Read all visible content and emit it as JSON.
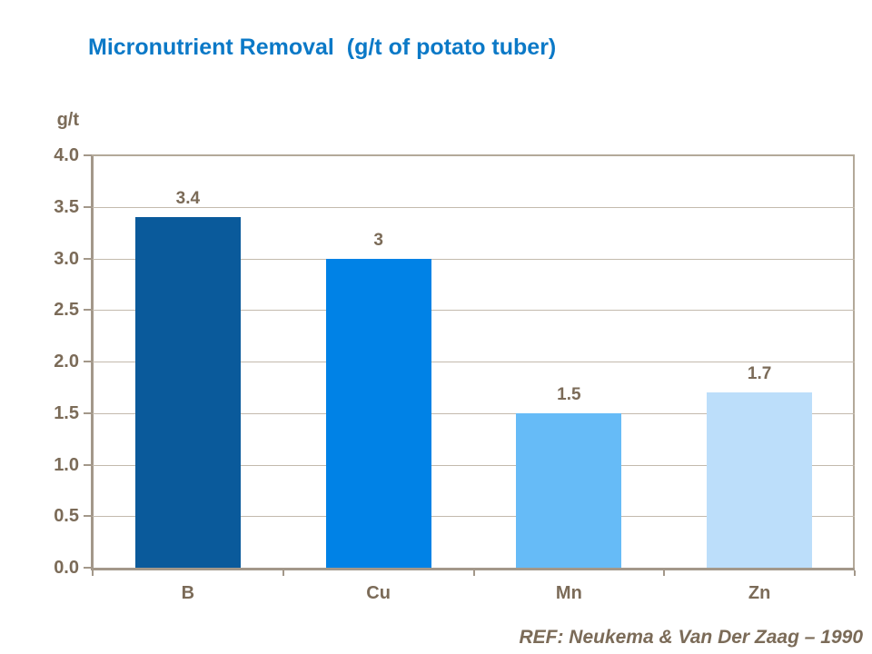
{
  "header": {
    "title": "Micronutrient Removal  (g/t of potato tuber)"
  },
  "footer": {
    "reference": "REF: Neukema & Van Der Zaag – 1990"
  },
  "colors": {
    "title": "#0b79c7",
    "text": "#7b6b58",
    "axis": "#a3988a",
    "border": "#b3a999",
    "gridline": "#c3baad",
    "bars": [
      "#0a5a9b",
      "#0082e6",
      "#66bbf7",
      "#bcdefa"
    ]
  },
  "chart_data": {
    "type": "bar",
    "title": "Micronutrient Removal  (g/t of potato tuber)",
    "categories": [
      "B",
      "Cu",
      "Mn",
      "Zn"
    ],
    "values": [
      3.4,
      3,
      1.5,
      1.7
    ],
    "value_labels": [
      "3.4",
      "3",
      "1.5",
      "1.7"
    ],
    "xlabel": "",
    "ylabel": "g/t",
    "ylim": [
      0,
      4
    ],
    "ytick_step": 0.5,
    "yticks": [
      "4.0",
      "3.5",
      "3.0",
      "2.5",
      "2.0",
      "1.5",
      "1.0",
      "0.5",
      "0.0"
    ],
    "grid": true,
    "gridline_positions": [
      3.5,
      3.0,
      2.5,
      2.0,
      1.5,
      1.0,
      0.5
    ],
    "plot_border": true,
    "legend": false,
    "annotation": "REF: Neukema & Van Der Zaag – 1990"
  }
}
